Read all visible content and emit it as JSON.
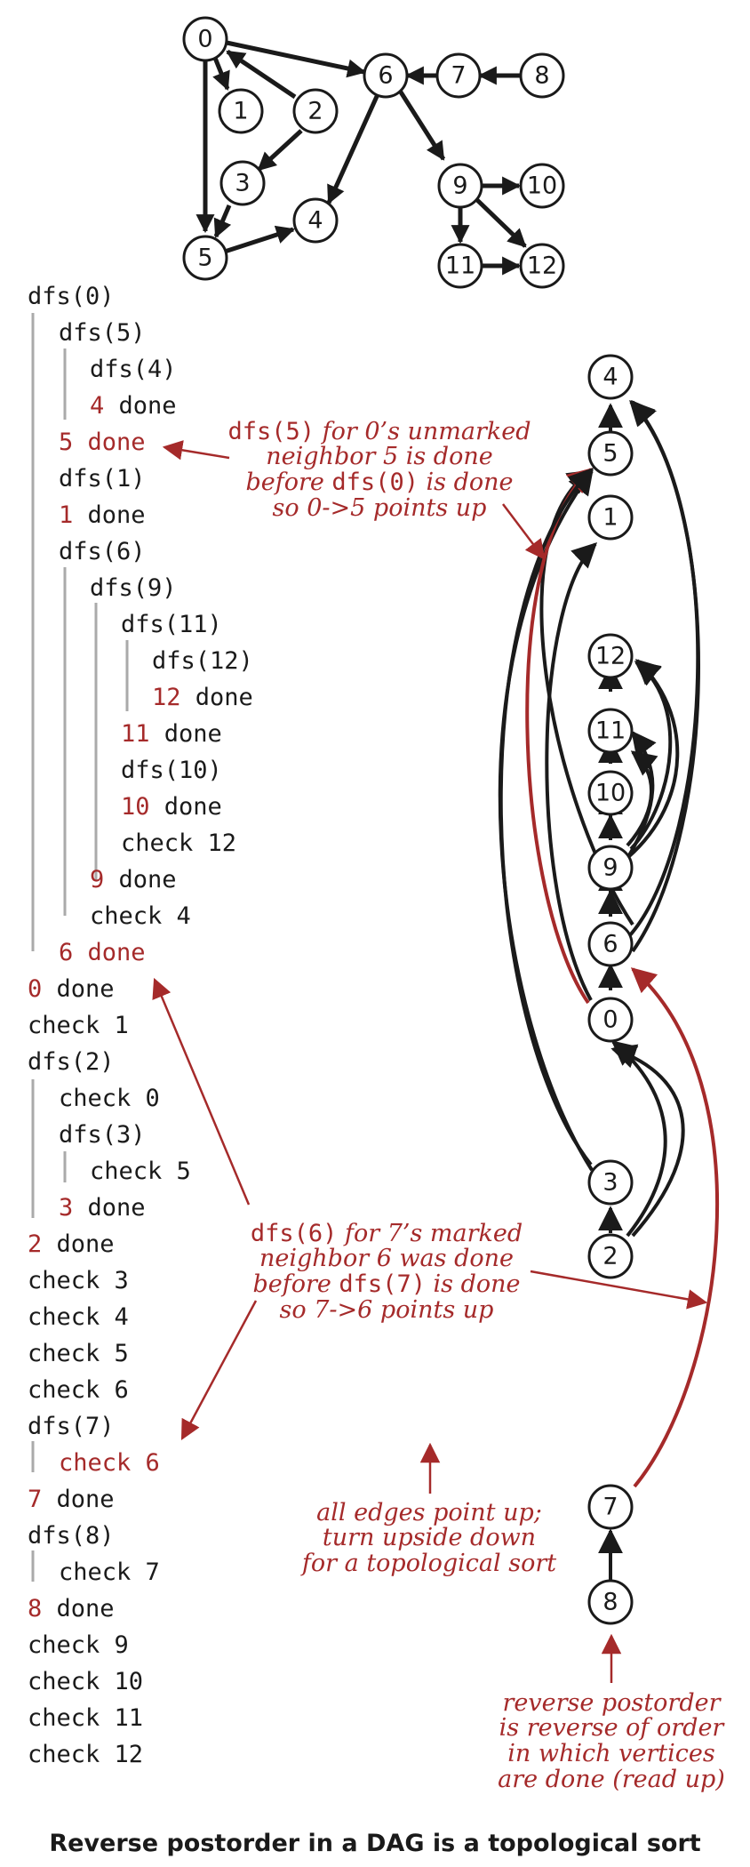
{
  "colors": {
    "red": "#a52a2a",
    "black": "#1a1a1a",
    "gray": "#aaaaaa"
  },
  "graph_nodes": [
    "0",
    "1",
    "2",
    "3",
    "4",
    "5",
    "6",
    "7",
    "8",
    "9",
    "10",
    "11",
    "12"
  ],
  "topo_nodes": [
    "4",
    "5",
    "1",
    "12",
    "11",
    "10",
    "9",
    "6",
    "0",
    "3",
    "2",
    "7",
    "8"
  ],
  "trace": [
    {
      "label": "dfs(0)",
      "red": ""
    },
    {
      "label": "dfs(5)",
      "red": ""
    },
    {
      "label": "dfs(4)",
      "red": ""
    },
    {
      "label": " done",
      "red": "4"
    },
    {
      "label": "5 done",
      "red": "5 done"
    },
    {
      "label": "dfs(1)",
      "red": ""
    },
    {
      "label": " done",
      "red": "1"
    },
    {
      "label": "dfs(6)",
      "red": ""
    },
    {
      "label": "dfs(9)",
      "red": ""
    },
    {
      "label": "dfs(11)",
      "red": ""
    },
    {
      "label": "dfs(12)",
      "red": ""
    },
    {
      "label": " done",
      "red": "12"
    },
    {
      "label": " done",
      "red": "11"
    },
    {
      "label": "dfs(10)",
      "red": ""
    },
    {
      "label": " done",
      "red": "10"
    },
    {
      "label": "check 12",
      "red": ""
    },
    {
      "label": " done",
      "red": "9"
    },
    {
      "label": "check 4",
      "red": ""
    },
    {
      "label": "6 done",
      "red": "6 done"
    },
    {
      "label": " done",
      "red": "0"
    },
    {
      "label": "check 1",
      "red": ""
    },
    {
      "label": "dfs(2)",
      "red": ""
    },
    {
      "label": "check 0",
      "red": ""
    },
    {
      "label": "dfs(3)",
      "red": ""
    },
    {
      "label": "check 5",
      "red": ""
    },
    {
      "label": " done",
      "red": "3"
    },
    {
      "label": " done",
      "red": "2"
    },
    {
      "label": "check 3",
      "red": ""
    },
    {
      "label": "check 4",
      "red": ""
    },
    {
      "label": "check 5",
      "red": ""
    },
    {
      "label": "check 6",
      "red": ""
    },
    {
      "label": "dfs(7)",
      "red": ""
    },
    {
      "label": "check 6",
      "red": "check 6"
    },
    {
      "label": " done",
      "red": "7"
    },
    {
      "label": "dfs(8)",
      "red": ""
    },
    {
      "label": "check 7",
      "red": ""
    },
    {
      "label": " done",
      "red": "8"
    },
    {
      "label": "check 9",
      "red": ""
    },
    {
      "label": "check 10",
      "red": ""
    },
    {
      "label": "check 11",
      "red": ""
    },
    {
      "label": "check 12",
      "red": ""
    }
  ],
  "annotations": {
    "a1": [
      "dfs(5)",
      " for 0’s unmarked",
      "neighbor 5 is done",
      "before ",
      "dfs(0)",
      " is done",
      "so 0->5 points up"
    ],
    "a2": [
      "dfs(6)",
      " for 7’s marked",
      "neighbor 6 was done",
      "before ",
      "dfs(7)",
      " is done",
      "so 7->6 points up"
    ],
    "a3": [
      "all edges point up;",
      "turn upside down",
      "for a topological sort"
    ],
    "a4": [
      "reverse postorder",
      "is reverse of order",
      "in which vertices",
      "are done (read up)"
    ]
  },
  "caption": "Reverse postorder in a DAG is a topological sort"
}
